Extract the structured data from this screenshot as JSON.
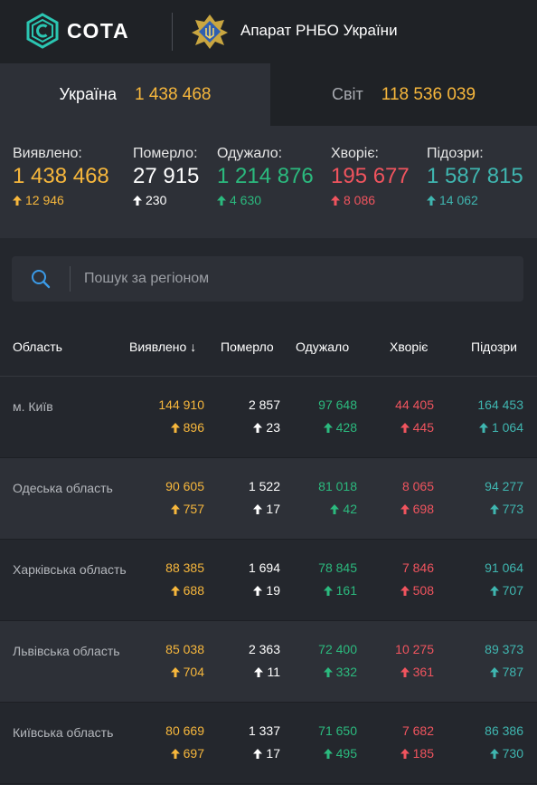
{
  "header": {
    "logo_text": "СОТА",
    "org_name": "Апарат РНБО України",
    "colors": {
      "logo_accent": "#2bc6b2",
      "emblem_gold": "#c9a640",
      "emblem_blue": "#2f5fb0"
    }
  },
  "scope_tabs": [
    {
      "label": "Україна",
      "value": "1 438 468",
      "active": true
    },
    {
      "label": "Світ",
      "value": "118 536 039",
      "active": false
    }
  ],
  "summary": [
    {
      "label": "Виявлено:",
      "value": "1 438 468",
      "delta": "12 946",
      "color": "#f7b73c"
    },
    {
      "label": "Померло:",
      "value": "27 915",
      "delta": "230",
      "color": "#ffffff"
    },
    {
      "label": "Одужало:",
      "value": "1 214 876",
      "delta": "4 630",
      "color": "#2bba7e"
    },
    {
      "label": "Хворіє:",
      "value": "195 677",
      "delta": "8 086",
      "color": "#f0545e"
    },
    {
      "label": "Підозри:",
      "value": "1 587 815",
      "delta": "14 062",
      "color": "#3fb6b0"
    }
  ],
  "search": {
    "placeholder": "Пошук за регіоном",
    "value": "",
    "icon": "search-icon"
  },
  "table": {
    "columns": {
      "region": "Область",
      "detected": "Виявлено",
      "sort_icon": "↓",
      "deaths": "Померло",
      "recovered": "Одужало",
      "sick": "Хворіє",
      "suspected": "Підозри"
    },
    "rows": [
      {
        "region": "м. Київ",
        "detected": "144 910",
        "detected_delta": "896",
        "deaths": "2 857",
        "deaths_delta": "23",
        "recovered": "97 648",
        "recovered_delta": "428",
        "sick": "44 405",
        "sick_delta": "445",
        "suspected": "164 453",
        "suspected_delta": "1 064"
      },
      {
        "region": "Одеська область",
        "detected": "90 605",
        "detected_delta": "757",
        "deaths": "1 522",
        "deaths_delta": "17",
        "recovered": "81 018",
        "recovered_delta": "42",
        "sick": "8 065",
        "sick_delta": "698",
        "suspected": "94 277",
        "suspected_delta": "773"
      },
      {
        "region": "Харківська область",
        "detected": "88 385",
        "detected_delta": "688",
        "deaths": "1 694",
        "deaths_delta": "19",
        "recovered": "78 845",
        "recovered_delta": "161",
        "sick": "7 846",
        "sick_delta": "508",
        "suspected": "91 064",
        "suspected_delta": "707"
      },
      {
        "region": "Львівська область",
        "detected": "85 038",
        "detected_delta": "704",
        "deaths": "2 363",
        "deaths_delta": "11",
        "recovered": "72 400",
        "recovered_delta": "332",
        "sick": "10 275",
        "sick_delta": "361",
        "suspected": "89 373",
        "suspected_delta": "787"
      },
      {
        "region": "Київська область",
        "detected": "80 669",
        "detected_delta": "697",
        "deaths": "1 337",
        "deaths_delta": "17",
        "recovered": "71 650",
        "recovered_delta": "495",
        "sick": "7 682",
        "sick_delta": "185",
        "suspected": "86 386",
        "suspected_delta": "730"
      }
    ]
  },
  "colors": {
    "detected": "#f7b73c",
    "deaths": "#ffffff",
    "recovered": "#2bba7e",
    "sick": "#f0545e",
    "suspected": "#3fb6b0"
  }
}
